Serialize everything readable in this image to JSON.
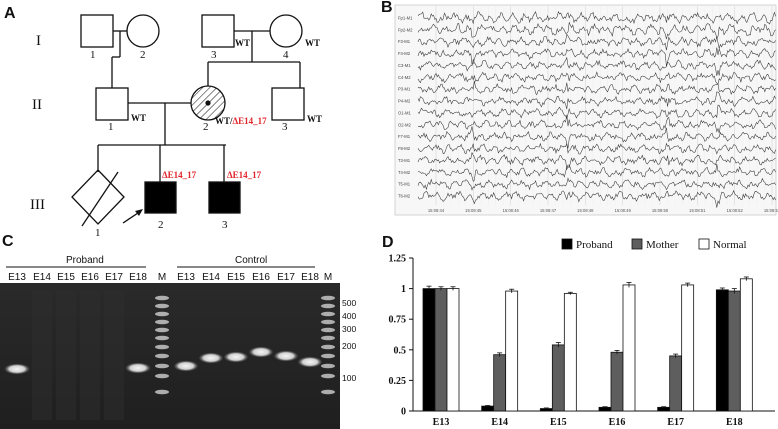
{
  "panels": {
    "A": {
      "label": "A",
      "generations": [
        "I",
        "II",
        "III"
      ],
      "individuals": {
        "I1": {
          "num": "1",
          "status": ""
        },
        "I2": {
          "num": "2",
          "status": ""
        },
        "I3": {
          "num": "3",
          "status": "WT"
        },
        "I4": {
          "num": "4",
          "status": "WT"
        },
        "II1": {
          "num": "1",
          "status": "WT"
        },
        "II2": {
          "num": "2",
          "status_a": "WT/",
          "status_b": "ΔE14_17"
        },
        "II3": {
          "num": "3",
          "status": "WT"
        },
        "III1": {
          "num": "1"
        },
        "III2": {
          "num": "2",
          "mutation": "ΔE14_17"
        },
        "III3": {
          "num": "3",
          "mutation": "ΔE14_17"
        }
      },
      "colors": {
        "mutation": "#e0262b",
        "line": "#111111"
      }
    },
    "B": {
      "label": "B",
      "channels": [
        "Fp1-M1",
        "Fp2-M2",
        "F3-M1",
        "F4-M2",
        "C3-M1",
        "C4-M2",
        "P3-M1",
        "P4-M2",
        "O1-M1",
        "O2-M2",
        "F7-M1",
        "F8-M2",
        "T3-M1",
        "T4-M2",
        "T5-M1",
        "T6-M2"
      ],
      "times": [
        "15:08:44",
        "15:08:45",
        "15:08:46",
        "15:08:47",
        "15:08:48",
        "15:08:49",
        "15:08:50",
        "15:08:51",
        "15:08:52",
        "15:08:53"
      ]
    },
    "C": {
      "label": "C",
      "group_proband": "Proband",
      "group_control": "Control",
      "lanes_proband": [
        "E13",
        "E14",
        "E15",
        "E16",
        "E17",
        "E18"
      ],
      "marker_label": "M",
      "lanes_control": [
        "E13",
        "E14",
        "E15",
        "E16",
        "E17",
        "E18"
      ],
      "ladder_sizes": [
        "500",
        "400",
        "300",
        "200",
        "100"
      ]
    },
    "D": {
      "label": "D",
      "legend": [
        "Proband",
        "Mother",
        "Normal"
      ]
    }
  },
  "chart_data": {
    "type": "bar",
    "categories": [
      "E13",
      "E14",
      "E15",
      "E16",
      "E17",
      "E18"
    ],
    "series": [
      {
        "name": "Proband",
        "values": [
          1.0,
          0.04,
          0.02,
          0.03,
          0.03,
          0.99
        ],
        "errors": [
          0.02,
          0.005,
          0.005,
          0.005,
          0.005,
          0.015
        ],
        "color": "#000000"
      },
      {
        "name": "Mother",
        "values": [
          1.0,
          0.46,
          0.54,
          0.48,
          0.45,
          0.98
        ],
        "errors": [
          0.015,
          0.015,
          0.02,
          0.015,
          0.015,
          0.02
        ],
        "color": "#5e5e5e"
      },
      {
        "name": "Normal",
        "values": [
          1.0,
          0.98,
          0.96,
          1.03,
          1.03,
          1.08
        ],
        "errors": [
          0.015,
          0.015,
          0.01,
          0.02,
          0.015,
          0.015
        ],
        "color": "#ffffff"
      }
    ],
    "yticks": [
      "0",
      "0.25",
      "0.5",
      "0.75",
      "1",
      "1.25"
    ],
    "ylim": [
      0,
      1.25
    ],
    "legend_position": "top-right",
    "grid": false
  }
}
